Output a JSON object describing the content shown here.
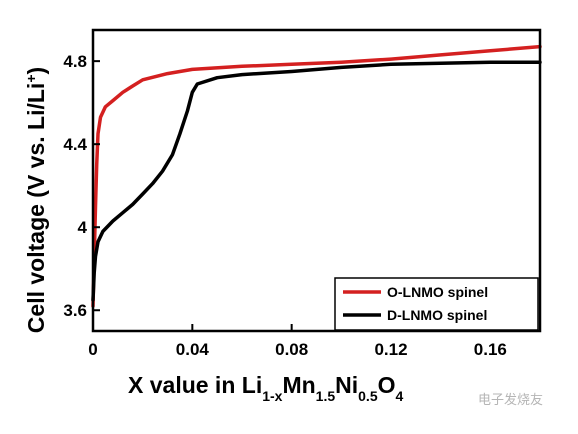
{
  "chart_data": {
    "type": "line",
    "xlabel": "X value in Li",
    "xlabel_sub1": "1-x",
    "xlabel_mid1": "Mn",
    "xlabel_sub2": "1.5",
    "xlabel_mid2": "Ni",
    "xlabel_sub3": "0.5",
    "xlabel_mid3": "O",
    "xlabel_sub4": "4",
    "ylabel": "Cell voltage (V vs. Li/Li",
    "ylabel_sup": "+",
    "ylabel_end": ")",
    "xlim": [
      0,
      0.18
    ],
    "ylim": [
      3.5,
      4.95
    ],
    "x_ticks": [
      0,
      0.04,
      0.08,
      0.12,
      0.16
    ],
    "x_tick_labels": [
      "0",
      "0.04",
      "0.08",
      "0.12",
      "0.16"
    ],
    "y_ticks": [
      3.6,
      4.0,
      4.4,
      4.8
    ],
    "y_tick_labels": [
      "3.6",
      "4",
      "4.4",
      "4.8"
    ],
    "legend_position": "bottom-right",
    "series": [
      {
        "name": "O-LNMO spinel",
        "color": "#d42020",
        "points": [
          [
            0.0,
            3.62
          ],
          [
            0.0005,
            3.85
          ],
          [
            0.001,
            4.1
          ],
          [
            0.0015,
            4.3
          ],
          [
            0.002,
            4.45
          ],
          [
            0.003,
            4.53
          ],
          [
            0.005,
            4.58
          ],
          [
            0.008,
            4.61
          ],
          [
            0.012,
            4.65
          ],
          [
            0.016,
            4.68
          ],
          [
            0.02,
            4.71
          ],
          [
            0.03,
            4.74
          ],
          [
            0.04,
            4.76
          ],
          [
            0.06,
            4.775
          ],
          [
            0.08,
            4.785
          ],
          [
            0.1,
            4.795
          ],
          [
            0.12,
            4.81
          ],
          [
            0.14,
            4.83
          ],
          [
            0.16,
            4.85
          ],
          [
            0.18,
            4.87
          ]
        ]
      },
      {
        "name": "D-LNMO spinel",
        "color": "#000000",
        "points": [
          [
            0.0,
            3.65
          ],
          [
            0.0005,
            3.78
          ],
          [
            0.001,
            3.86
          ],
          [
            0.002,
            3.93
          ],
          [
            0.004,
            3.98
          ],
          [
            0.008,
            4.03
          ],
          [
            0.012,
            4.07
          ],
          [
            0.016,
            4.11
          ],
          [
            0.02,
            4.16
          ],
          [
            0.024,
            4.21
          ],
          [
            0.028,
            4.27
          ],
          [
            0.032,
            4.35
          ],
          [
            0.035,
            4.45
          ],
          [
            0.038,
            4.56
          ],
          [
            0.04,
            4.65
          ],
          [
            0.042,
            4.69
          ],
          [
            0.05,
            4.72
          ],
          [
            0.06,
            4.735
          ],
          [
            0.08,
            4.75
          ],
          [
            0.1,
            4.77
          ],
          [
            0.12,
            4.785
          ],
          [
            0.14,
            4.79
          ],
          [
            0.16,
            4.795
          ],
          [
            0.18,
            4.795
          ]
        ]
      }
    ]
  },
  "watermark": "电子发烧友"
}
